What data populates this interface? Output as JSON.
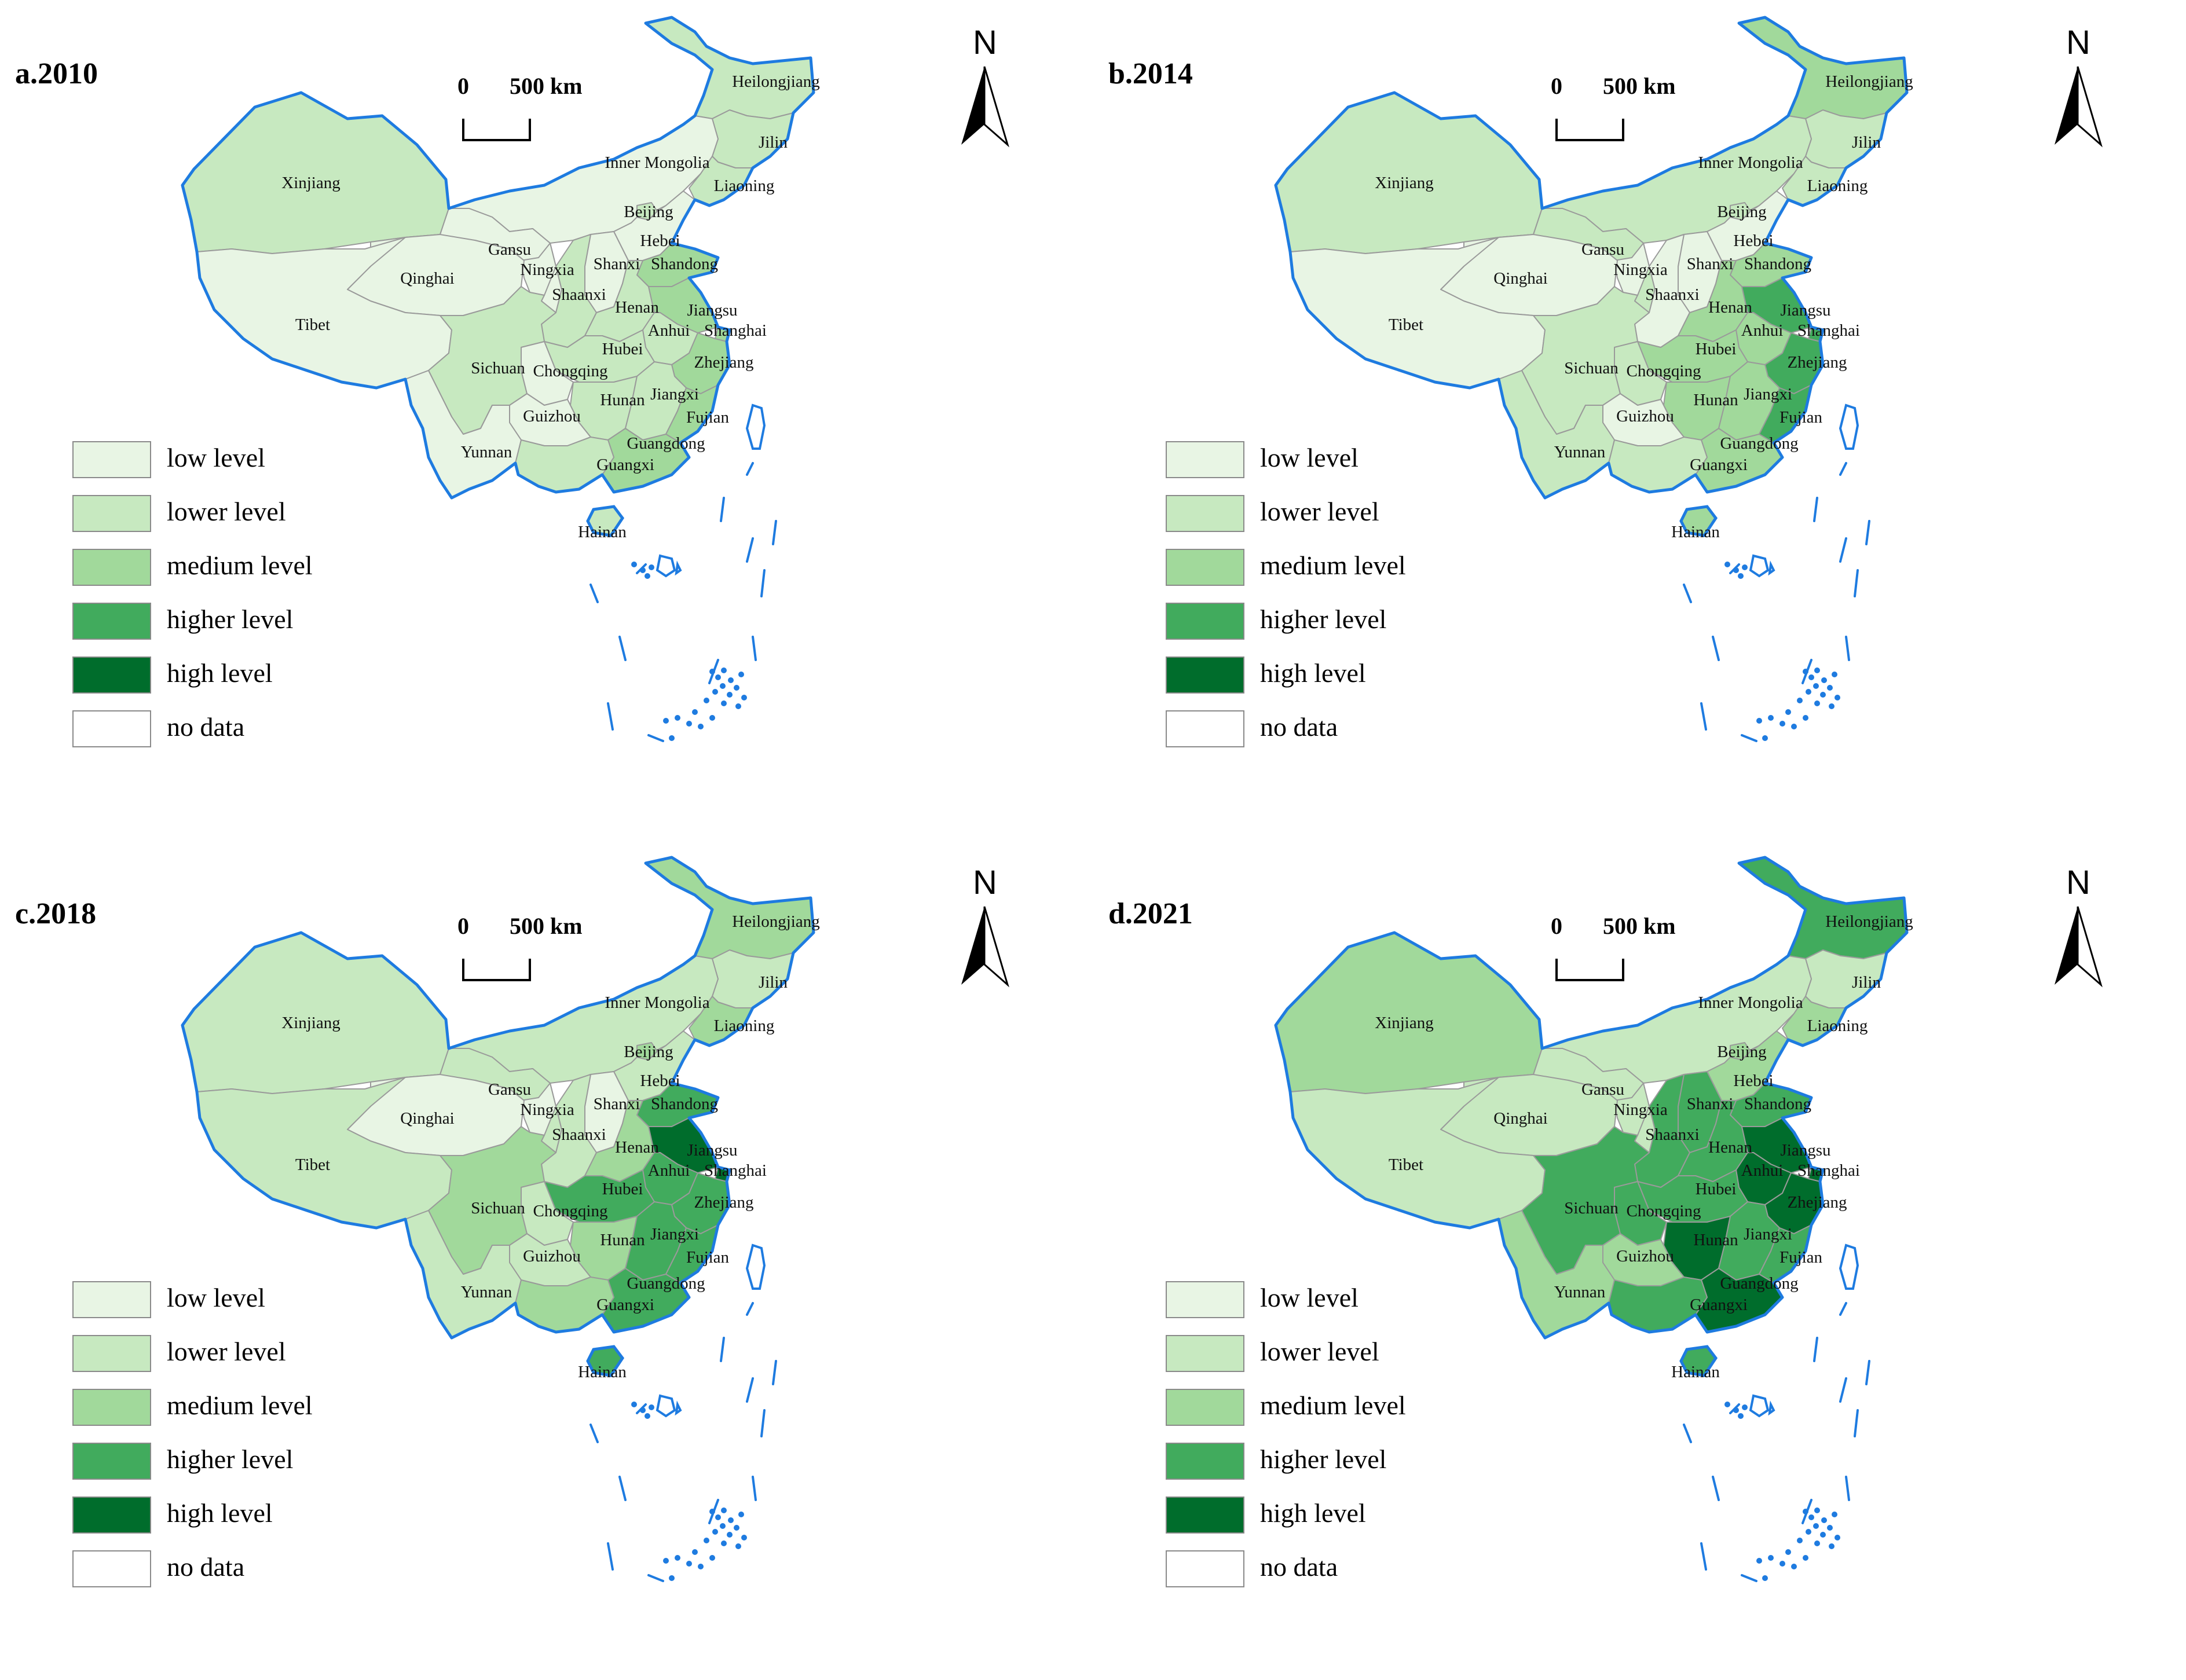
{
  "colors": {
    "low": "#e8f5e4",
    "lower": "#c7e9c0",
    "medium": "#a1d99b",
    "higher": "#41ab5d",
    "high": "#006d2c",
    "nodata": "#ffffff",
    "coast": "#1e7be0",
    "border": "#9a9a9a"
  },
  "legend": [
    {
      "key": "low",
      "label": "low level"
    },
    {
      "key": "lower",
      "label": "lower level"
    },
    {
      "key": "medium",
      "label": "medium level"
    },
    {
      "key": "higher",
      "label": "higher level"
    },
    {
      "key": "high",
      "label": "high level"
    },
    {
      "key": "nodata",
      "label": "no data"
    }
  ],
  "scale": {
    "zero": "0",
    "distance": "500 km"
  },
  "north": "N",
  "panels": [
    {
      "title": "a.2010",
      "levels": {
        "Xinjiang": "lower",
        "Tibet": "low",
        "Qinghai": "low",
        "Gansu": "low",
        "Ningxia": "low",
        "Inner Mongolia": "low",
        "Heilongjiang": "lower",
        "Jilin": "lower",
        "Liaoning": "lower",
        "Beijing": "lower",
        "Hebei": "low",
        "Shanxi": "low",
        "Shandong": "medium",
        "Shaanxi": "lower",
        "Henan": "lower",
        "Jiangsu": "medium",
        "Anhui": "lower",
        "Shanghai": "medium",
        "Hubei": "lower",
        "Zhejiang": "medium",
        "Sichuan": "lower",
        "Chongqing": "low",
        "Hunan": "lower",
        "Jiangxi": "lower",
        "Fujian": "medium",
        "Guizhou": "low",
        "Yunnan": "low",
        "Guangxi": "lower",
        "Guangdong": "medium",
        "Hainan": "lower"
      }
    },
    {
      "title": "b.2014",
      "levels": {
        "Xinjiang": "lower",
        "Tibet": "low",
        "Qinghai": "low",
        "Gansu": "lower",
        "Ningxia": "low",
        "Inner Mongolia": "lower",
        "Heilongjiang": "medium",
        "Jilin": "lower",
        "Liaoning": "lower",
        "Beijing": "lower",
        "Hebei": "low",
        "Shanxi": "low",
        "Shandong": "medium",
        "Shaanxi": "low",
        "Henan": "medium",
        "Jiangsu": "higher",
        "Anhui": "medium",
        "Shanghai": "higher",
        "Hubei": "medium",
        "Zhejiang": "higher",
        "Sichuan": "lower",
        "Chongqing": "lower",
        "Hunan": "medium",
        "Jiangxi": "medium",
        "Fujian": "higher",
        "Guizhou": "low",
        "Yunnan": "lower",
        "Guangxi": "lower",
        "Guangdong": "medium",
        "Hainan": "medium"
      }
    },
    {
      "title": "c.2018",
      "levels": {
        "Xinjiang": "lower",
        "Tibet": "lower",
        "Qinghai": "low",
        "Gansu": "lower",
        "Ningxia": "low",
        "Inner Mongolia": "lower",
        "Heilongjiang": "medium",
        "Jilin": "lower",
        "Liaoning": "medium",
        "Beijing": "medium",
        "Hebei": "lower",
        "Shanxi": "low",
        "Shandong": "higher",
        "Shaanxi": "lower",
        "Henan": "medium",
        "Jiangsu": "high",
        "Anhui": "higher",
        "Shanghai": "high",
        "Hubei": "higher",
        "Zhejiang": "higher",
        "Sichuan": "medium",
        "Chongqing": "lower",
        "Hunan": "medium",
        "Jiangxi": "higher",
        "Fujian": "higher",
        "Guizhou": "lower",
        "Yunnan": "lower",
        "Guangxi": "medium",
        "Guangdong": "higher",
        "Hainan": "higher"
      }
    },
    {
      "title": "d.2021",
      "levels": {
        "Xinjiang": "medium",
        "Tibet": "lower",
        "Qinghai": "lower",
        "Gansu": "lower",
        "Ningxia": "lower",
        "Inner Mongolia": "lower",
        "Heilongjiang": "higher",
        "Jilin": "lower",
        "Liaoning": "medium",
        "Beijing": "medium",
        "Hebei": "medium",
        "Shanxi": "higher",
        "Shandong": "higher",
        "Shaanxi": "higher",
        "Henan": "higher",
        "Jiangsu": "high",
        "Anhui": "high",
        "Shanghai": "high",
        "Hubei": "higher",
        "Zhejiang": "high",
        "Sichuan": "higher",
        "Chongqing": "higher",
        "Hunan": "high",
        "Jiangxi": "higher",
        "Fujian": "higher",
        "Guizhou": "medium",
        "Yunnan": "medium",
        "Guangxi": "higher",
        "Guangdong": "high",
        "Hainan": "higher"
      }
    }
  ],
  "provinces": [
    "Heilongjiang",
    "Jilin",
    "Inner Mongolia",
    "Liaoning",
    "Xinjiang",
    "Beijing",
    "Gansu",
    "Hebei",
    "Ningxia",
    "Shanxi",
    "Shandong",
    "Qinghai",
    "Shaanxi",
    "Henan",
    "Jiangsu",
    "Tibet",
    "Anhui",
    "Shanghai",
    "Hubei",
    "Sichuan",
    "Chongqing",
    "Zhejiang",
    "Hunan",
    "Jiangxi",
    "Guizhou",
    "Fujian",
    "Yunnan",
    "Guangdong",
    "Guangxi",
    "Hainan"
  ]
}
